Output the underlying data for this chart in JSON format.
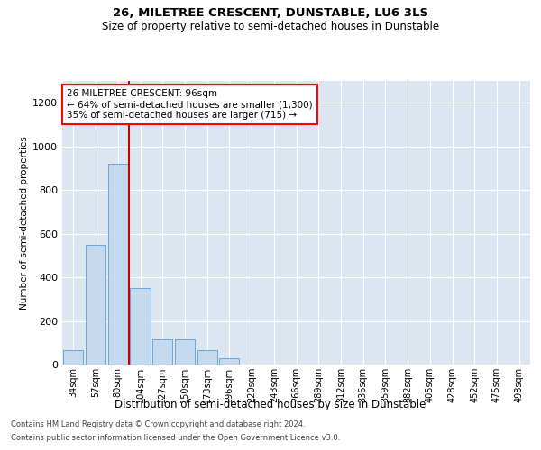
{
  "title_line1": "26, MILETREE CRESCENT, DUNSTABLE, LU6 3LS",
  "title_line2": "Size of property relative to semi-detached houses in Dunstable",
  "xlabel": "Distribution of semi-detached houses by size in Dunstable",
  "ylabel": "Number of semi-detached properties",
  "footer_line1": "Contains HM Land Registry data © Crown copyright and database right 2024.",
  "footer_line2": "Contains public sector information licensed under the Open Government Licence v3.0.",
  "annotation_title": "26 MILETREE CRESCENT: 96sqm",
  "annotation_line1": "← 64% of semi-detached houses are smaller (1,300)",
  "annotation_line2": "35% of semi-detached houses are larger (715) →",
  "bar_color": "#c5d9ee",
  "bar_edge_color": "#5b9bd5",
  "background_color": "#dce6f1",
  "vline_color": "#cc0000",
  "categories": [
    "34sqm",
    "57sqm",
    "80sqm",
    "104sqm",
    "127sqm",
    "150sqm",
    "173sqm",
    "196sqm",
    "220sqm",
    "243sqm",
    "266sqm",
    "289sqm",
    "312sqm",
    "336sqm",
    "359sqm",
    "382sqm",
    "405sqm",
    "428sqm",
    "452sqm",
    "475sqm",
    "498sqm"
  ],
  "values": [
    65,
    550,
    920,
    350,
    115,
    115,
    65,
    30,
    0,
    0,
    0,
    0,
    0,
    0,
    0,
    0,
    0,
    0,
    0,
    0,
    0
  ],
  "ylim": [
    0,
    1300
  ],
  "yticks": [
    0,
    200,
    400,
    600,
    800,
    1000,
    1200
  ],
  "vline_x": 2.5,
  "figsize": [
    6.0,
    5.0
  ],
  "dpi": 100
}
